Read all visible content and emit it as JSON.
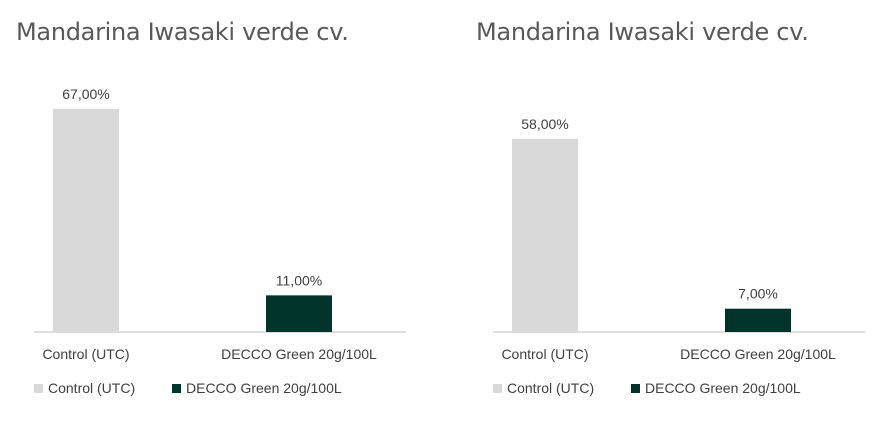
{
  "colors": {
    "control": "#d9d9d9",
    "decco": "#00332a",
    "axis": "#bfbfbf",
    "text": "#404040",
    "title": "#595959"
  },
  "chart_data": [
    {
      "type": "bar",
      "title": "Mandarina Iwasaki verde cv.",
      "categories": [
        "Control (UTC)",
        "DECCO Green 20g/100L"
      ],
      "values": [
        67,
        11
      ],
      "value_labels": [
        "67,00%",
        "11,00%"
      ],
      "ylim": [
        0,
        100
      ],
      "grid": false,
      "legend_position": "bottom",
      "legend": [
        "Control (UTC)",
        "DECCO Green 20g/100L"
      ]
    },
    {
      "type": "bar",
      "title": "Mandarina Iwasaki verde cv.",
      "categories": [
        "Control (UTC)",
        "DECCO Green 20g/100L"
      ],
      "values": [
        58,
        7
      ],
      "value_labels": [
        "58,00%",
        "7,00%"
      ],
      "ylim": [
        0,
        100
      ],
      "grid": false,
      "legend_position": "bottom",
      "legend": [
        "Control (UTC)",
        "DECCO Green 20g/100L"
      ]
    }
  ]
}
